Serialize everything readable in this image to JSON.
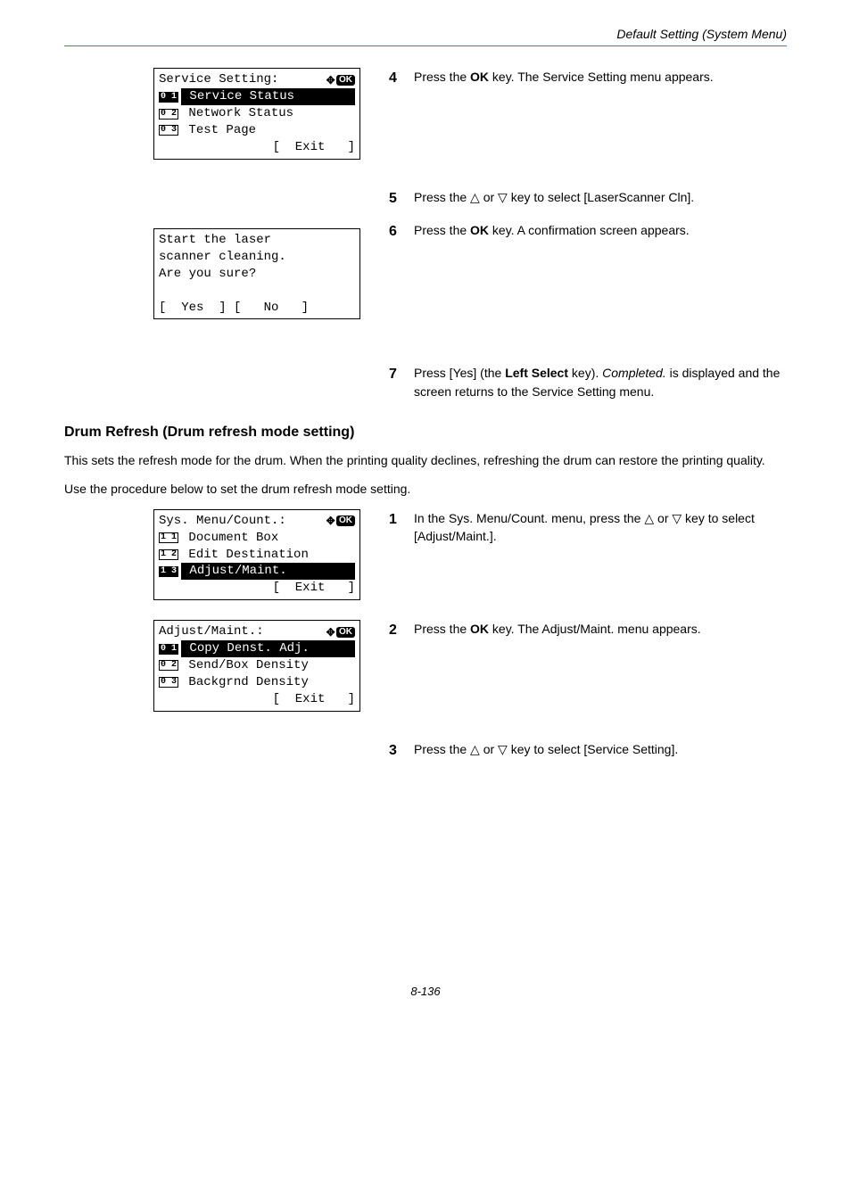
{
  "header": {
    "section_title": "Default Setting (System Menu)"
  },
  "lcd1": {
    "title": "Service Setting:",
    "item1_num": "0 1",
    "item1_text": " Service Status ",
    "item2_num": "0 2",
    "item2_text": " Network Status",
    "item3_num": "0 3",
    "item3_text": " Test Page",
    "exit": "[  Exit   ]"
  },
  "lcd2": {
    "l1": "Start the laser",
    "l2": "scanner cleaning.",
    "l3": "Are you sure?",
    "btns": "[  Yes  ] [   No   ]"
  },
  "lcd3": {
    "title": "Sys. Menu/Count.:",
    "item1_num": "1 1",
    "item1_text": " Document Box",
    "item2_num": "1 2",
    "item2_text": " Edit Destination",
    "item3_num": "1 3",
    "item3_text": " Adjust/Maint.   ",
    "exit": "[  Exit   ]"
  },
  "lcd4": {
    "title": "Adjust/Maint.:",
    "item1_num": "0 1",
    "item1_text": " Copy Denst. Adj.",
    "item2_num": "0 2",
    "item2_text": " Send/Box Density",
    "item3_num": "0 3",
    "item3_text": " Backgrnd Density",
    "exit": "[  Exit   ]"
  },
  "steps": {
    "s4_num": "4",
    "s4_a": "Press the ",
    "s4_b": "OK",
    "s4_c": " key. The Service Setting menu appears.",
    "s5_num": "5",
    "s5_a": "Press the ",
    "s5_b": " or ",
    "s5_c": " key to select [LaserScanner Cln].",
    "s6_num": "6",
    "s6_a": "Press the ",
    "s6_b": "OK",
    "s6_c": " key. A confirmation screen appears.",
    "s7_num": "7",
    "s7_a": "Press [Yes] (the ",
    "s7_b": "Left Select",
    "s7_c": " key). ",
    "s7_d": "Completed.",
    "s7_e": " is displayed and the screen returns to the Service Setting menu.",
    "s1_num": "1",
    "s1_a": "In the Sys. Menu/Count. menu, press the ",
    "s1_b": " or ",
    "s1_c": " key to select [Adjust/Maint.].",
    "s2_num": "2",
    "s2_a": "Press the ",
    "s2_b": "OK",
    "s2_c": " key. The Adjust/Maint. menu appears.",
    "s3_num": "3",
    "s3_a": "Press the ",
    "s3_b": " or ",
    "s3_c": " key to select [Service Setting]."
  },
  "section2": {
    "heading": "Drum Refresh (Drum refresh mode setting)",
    "p1": "This sets the refresh mode for the drum. When the printing quality declines, refreshing the drum can restore the printing quality.",
    "p2": "Use the procedure below to set the drum refresh mode setting."
  },
  "glyphs": {
    "tri_up": "△",
    "tri_down": "▽"
  },
  "footer": {
    "page": "8-136"
  }
}
